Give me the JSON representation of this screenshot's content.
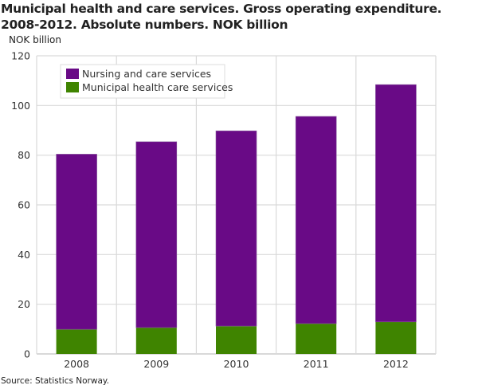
{
  "chart_data": {
    "type": "bar",
    "stacked": true,
    "title": "Municipal health and care services. Gross operating expenditure. 2008-2012. Absolute numbers. NOK billion",
    "ylabel": "NOK billion",
    "xlabel": "",
    "ylim": [
      0,
      120
    ],
    "yticks": [
      0,
      20,
      40,
      60,
      80,
      100,
      120
    ],
    "grid": true,
    "legend_position": "top-left",
    "categories": [
      "2008",
      "2009",
      "2010",
      "2011",
      "2012"
    ],
    "series": [
      {
        "name": "Municipal health care services",
        "color": "#3f8400",
        "values": [
          9.9,
          10.6,
          11.2,
          12.2,
          12.9
        ]
      },
      {
        "name": "Nursing and care services",
        "color": "#690a86",
        "values": [
          70.5,
          74.8,
          78.6,
          83.4,
          95.5
        ]
      }
    ],
    "legend_order": [
      1,
      0
    ],
    "source": "Source: Statistics Norway."
  }
}
